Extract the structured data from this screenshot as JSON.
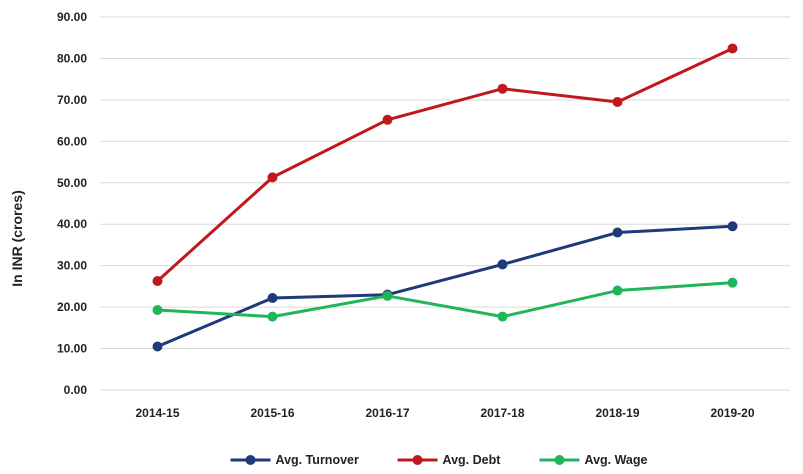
{
  "chart_data": {
    "type": "line",
    "title": "",
    "xlabel": "",
    "ylabel": "In INR (crores)",
    "categories": [
      "2014-15",
      "2015-16",
      "2016-17",
      "2017-18",
      "2018-19",
      "2019-20"
    ],
    "ylim": [
      0,
      90
    ],
    "yticks": [
      "0.00",
      "10.00",
      "20.00",
      "30.00",
      "40.00",
      "50.00",
      "60.00",
      "70.00",
      "80.00",
      "90.00"
    ],
    "grid": true,
    "legend_position": "bottom",
    "series": [
      {
        "name": "Avg. Turnover",
        "color": "#1f3a78",
        "values": [
          10.5,
          22.2,
          23.0,
          30.3,
          38.0,
          39.5
        ]
      },
      {
        "name": "Avg. Debt",
        "color": "#c0191d",
        "values": [
          26.3,
          51.3,
          65.2,
          72.7,
          69.5,
          82.4
        ]
      },
      {
        "name": "Avg. Wage",
        "color": "#21b55a",
        "values": [
          19.3,
          17.7,
          22.7,
          17.7,
          24.0,
          25.9
        ]
      }
    ]
  },
  "colors": {
    "grid": "#d9d9d9",
    "text": "#222222"
  }
}
